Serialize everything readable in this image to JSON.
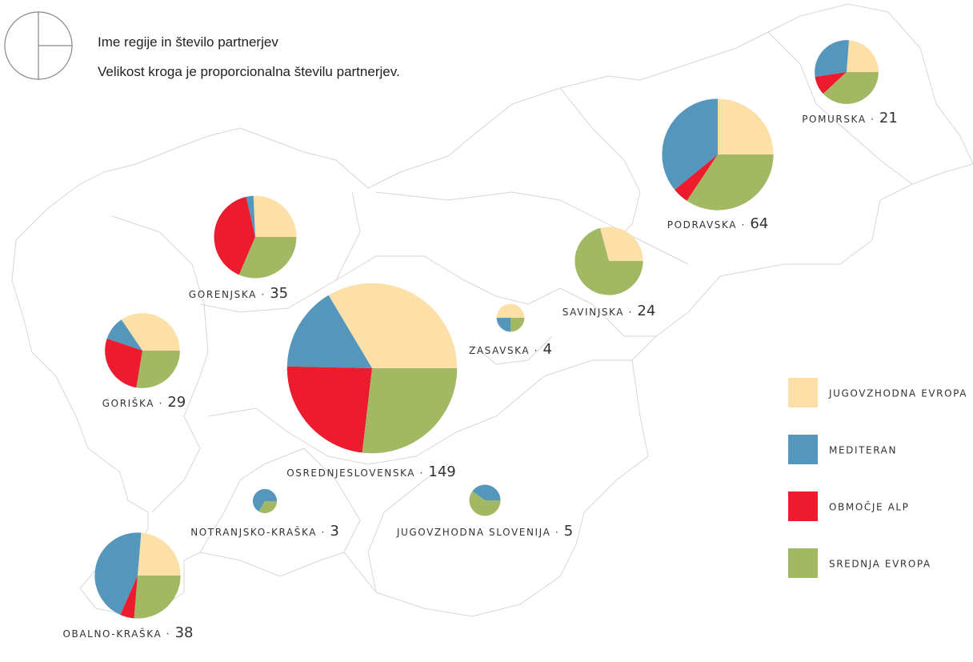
{
  "header": {
    "title": "Ime regije in število partnerjev",
    "subtitle": "Velikost kroga je proporcionalna številu partnerjev."
  },
  "separator": "·",
  "legend": [
    {
      "name": "JUGOVZHODNA EVROPA",
      "color": "#fde0a8"
    },
    {
      "name": "MEDITERAN",
      "color": "#5596bd"
    },
    {
      "name": "OBMOČJE ALP",
      "color": "#ec1c2e"
    },
    {
      "name": "SREDNJA EVROPA",
      "color": "#a2b863"
    }
  ],
  "regions": [
    {
      "name": "POMURSKA",
      "count": 21,
      "values": [
        5,
        6,
        2,
        8
      ]
    },
    {
      "name": "PODRAVSKA",
      "count": 64,
      "values": [
        16,
        23,
        3,
        22
      ]
    },
    {
      "name": "GORENJSKA",
      "count": 35,
      "values": [
        9,
        1,
        14,
        11
      ]
    },
    {
      "name": "SAVINJSKA",
      "count": 24,
      "values": [
        7,
        0,
        0,
        17
      ]
    },
    {
      "name": "ZASAVSKA",
      "count": 4,
      "values": [
        2,
        1,
        0,
        1
      ]
    },
    {
      "name": "OSREDNJESLOVENSKA",
      "count": 149,
      "values": [
        50,
        24,
        35,
        40
      ]
    },
    {
      "name": "GORIŠKA",
      "count": 29,
      "values": [
        10,
        3,
        8,
        8
      ]
    },
    {
      "name": "NOTRANJSKO-KRAŠKA",
      "count": 3,
      "values": [
        0,
        2,
        0,
        1
      ]
    },
    {
      "name": "JUGOVZHODNA SLOVENIJA",
      "count": 5,
      "values": [
        0,
        2,
        0,
        3
      ]
    },
    {
      "name": "OBALNO-KRAŠKA",
      "count": 38,
      "values": [
        9,
        17,
        2,
        10
      ]
    }
  ]
}
